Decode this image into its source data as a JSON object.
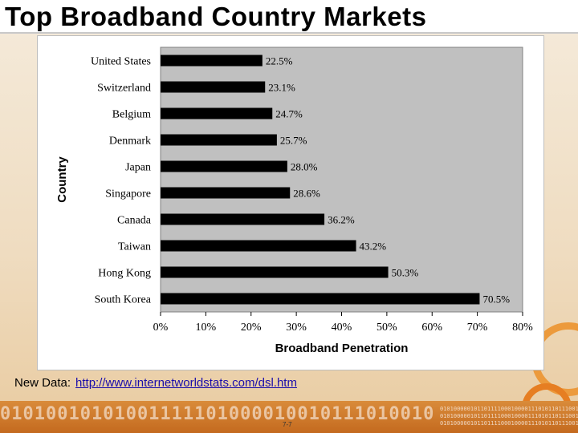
{
  "slide": {
    "title": "Top Broadband Country Markets",
    "caption_label": "New Data:",
    "caption_link": "http://www.internetworldstats.com/dsl.htm",
    "page_number": "7-7",
    "footer_binary": "01010010101001111101000010010111010010",
    "footer_binary_small": "0101000001011011110001000011101011011100100101100101"
  },
  "colors": {
    "bar": "#000000",
    "plot_bg": "#c0c0c0",
    "accent": "#e67e22"
  },
  "chart_data": {
    "type": "bar",
    "orientation": "horizontal",
    "title": "",
    "xlabel": "Broadband Penetration",
    "ylabel": "Country",
    "categories": [
      "United States",
      "Switzerland",
      "Belgium",
      "Denmark",
      "Japan",
      "Singapore",
      "Canada",
      "Taiwan",
      "Hong Kong",
      "South Korea"
    ],
    "values": [
      22.5,
      23.1,
      24.7,
      25.7,
      28.0,
      28.6,
      36.2,
      43.2,
      50.3,
      70.5
    ],
    "value_labels": [
      "22.5%",
      "23.1%",
      "24.7%",
      "25.7%",
      "28.0%",
      "28.6%",
      "36.2%",
      "43.2%",
      "50.3%",
      "70.5%"
    ],
    "xlim": [
      0,
      80
    ],
    "x_ticks": [
      0,
      10,
      20,
      30,
      40,
      50,
      60,
      70,
      80
    ],
    "x_tick_labels": [
      "0%",
      "10%",
      "20%",
      "30%",
      "40%",
      "50%",
      "60%",
      "70%",
      "80%"
    ],
    "grid": false,
    "legend": "none"
  }
}
